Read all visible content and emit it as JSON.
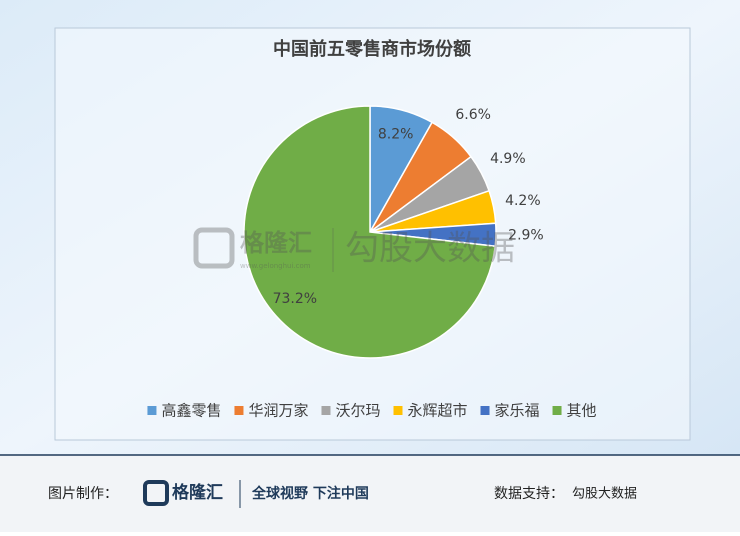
{
  "chart_data": {
    "type": "pie",
    "title": "中国前五零售商市场份额",
    "categories": [
      "高鑫零售",
      "华润万家",
      "沃尔玛",
      "永辉超市",
      "家乐福",
      "其他"
    ],
    "values": [
      8.2,
      6.6,
      4.9,
      4.2,
      2.9,
      73.2
    ],
    "value_labels": [
      "8.2%",
      "6.6%",
      "4.9%",
      "4.2%",
      "2.9%",
      "73.2%"
    ],
    "colors": [
      "#5b9bd5",
      "#ed7d31",
      "#a5a5a5",
      "#ffc000",
      "#4472c4",
      "#70ad47"
    ],
    "legend": "bottom"
  },
  "watermark": {
    "brand": "格隆汇",
    "url": "www.gelonghui.com",
    "partner": "勾股大数据"
  },
  "footer": {
    "made_by_label": "图片制作：",
    "brand": "格隆汇",
    "slogan": "全球视野 下注中国",
    "data_label": "数据支持：",
    "data_source": "勾股大数据"
  }
}
